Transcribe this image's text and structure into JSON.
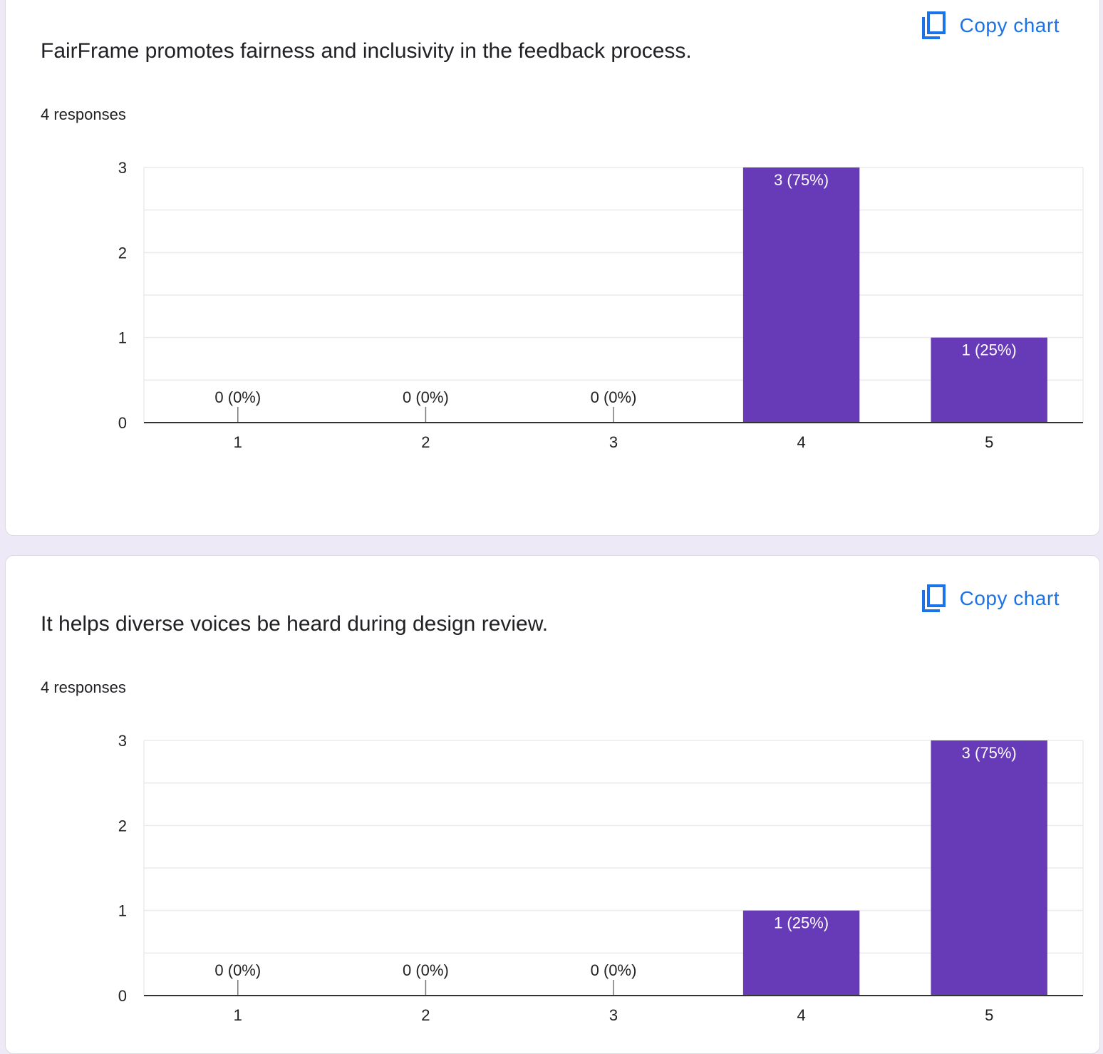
{
  "colors": {
    "accent": "#1a73e8",
    "bar": "#673ab7",
    "gridline": "#ebebeb",
    "axis": "#333333",
    "page_background": "#ede9f6"
  },
  "copy_icon": "copy-icon",
  "questions": [
    {
      "title": "FairFrame promotes fairness and inclusivity in the feedback process.",
      "responses": "4 responses",
      "copy_label": "Copy chart"
    },
    {
      "title": "It helps diverse voices be heard during design review.",
      "responses": "4 responses",
      "copy_label": "Copy chart"
    }
  ],
  "chart_data": [
    {
      "type": "bar",
      "categories": [
        "1",
        "2",
        "3",
        "4",
        "5"
      ],
      "values": [
        0,
        0,
        0,
        3,
        1
      ],
      "data_labels": [
        "0 (0%)",
        "0 (0%)",
        "0 (0%)",
        "3 (75%)",
        "1 (25%)"
      ],
      "y_ticks": [
        "0",
        "1",
        "2",
        "3"
      ],
      "ylim": [
        0,
        3
      ],
      "grid": true,
      "legend": "none",
      "color": "#673ab7"
    },
    {
      "type": "bar",
      "categories": [
        "1",
        "2",
        "3",
        "4",
        "5"
      ],
      "values": [
        0,
        0,
        0,
        1,
        3
      ],
      "data_labels": [
        "0 (0%)",
        "0 (0%)",
        "0 (0%)",
        "1 (25%)",
        "3 (75%)"
      ],
      "y_ticks": [
        "0",
        "1",
        "2",
        "3"
      ],
      "ylim": [
        0,
        3
      ],
      "grid": true,
      "legend": "none",
      "color": "#673ab7"
    }
  ]
}
